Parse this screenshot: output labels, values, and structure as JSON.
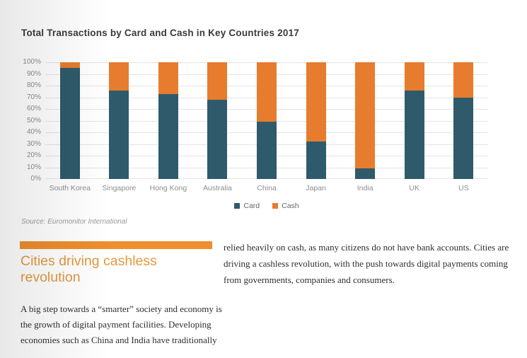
{
  "chart_data": {
    "type": "bar",
    "stacked": true,
    "title": "Total Transactions by Card and Cash in Key Countries 2017",
    "categories": [
      "South Korea",
      "Singapore",
      "Hong Kong",
      "Australia",
      "China",
      "Japan",
      "India",
      "UK",
      "US"
    ],
    "series": [
      {
        "name": "Card",
        "color": "#2F5A6B",
        "values": [
          95,
          76,
          73,
          68,
          49,
          32,
          9,
          76,
          70
        ]
      },
      {
        "name": "Cash",
        "color": "#E77C2E",
        "values": [
          5,
          24,
          27,
          32,
          51,
          68,
          91,
          24,
          30
        ]
      }
    ],
    "xlabel": "",
    "ylabel": "",
    "ylim": [
      0,
      100
    ],
    "y_ticks": [
      "0%",
      "10%",
      "20%",
      "30%",
      "40%",
      "50%",
      "60%",
      "70%",
      "80%",
      "90%",
      "100%"
    ],
    "grid": true,
    "legend_position": "bottom",
    "source_note": "Source: Euromonitor International"
  },
  "chart": {
    "title": "Total Transactions by Card and Cash in Key Countries 2017",
    "source_note": "Source: Euromonitor International"
  },
  "article": {
    "heading": "Cities driving cashless revolution",
    "heading_color": "#E5993E",
    "divider_color": "#EE8E2E",
    "left_paragraph": "A big step towards a “smarter” society and economy is the growth of digital payment facilities. Developing economies such as China and India have traditionally",
    "right_paragraph": "relied heavily on cash, as many citizens do not have bank accounts. Cities are driving a cashless revolution, with the push towards digital payments coming from governments, companies and consumers."
  }
}
